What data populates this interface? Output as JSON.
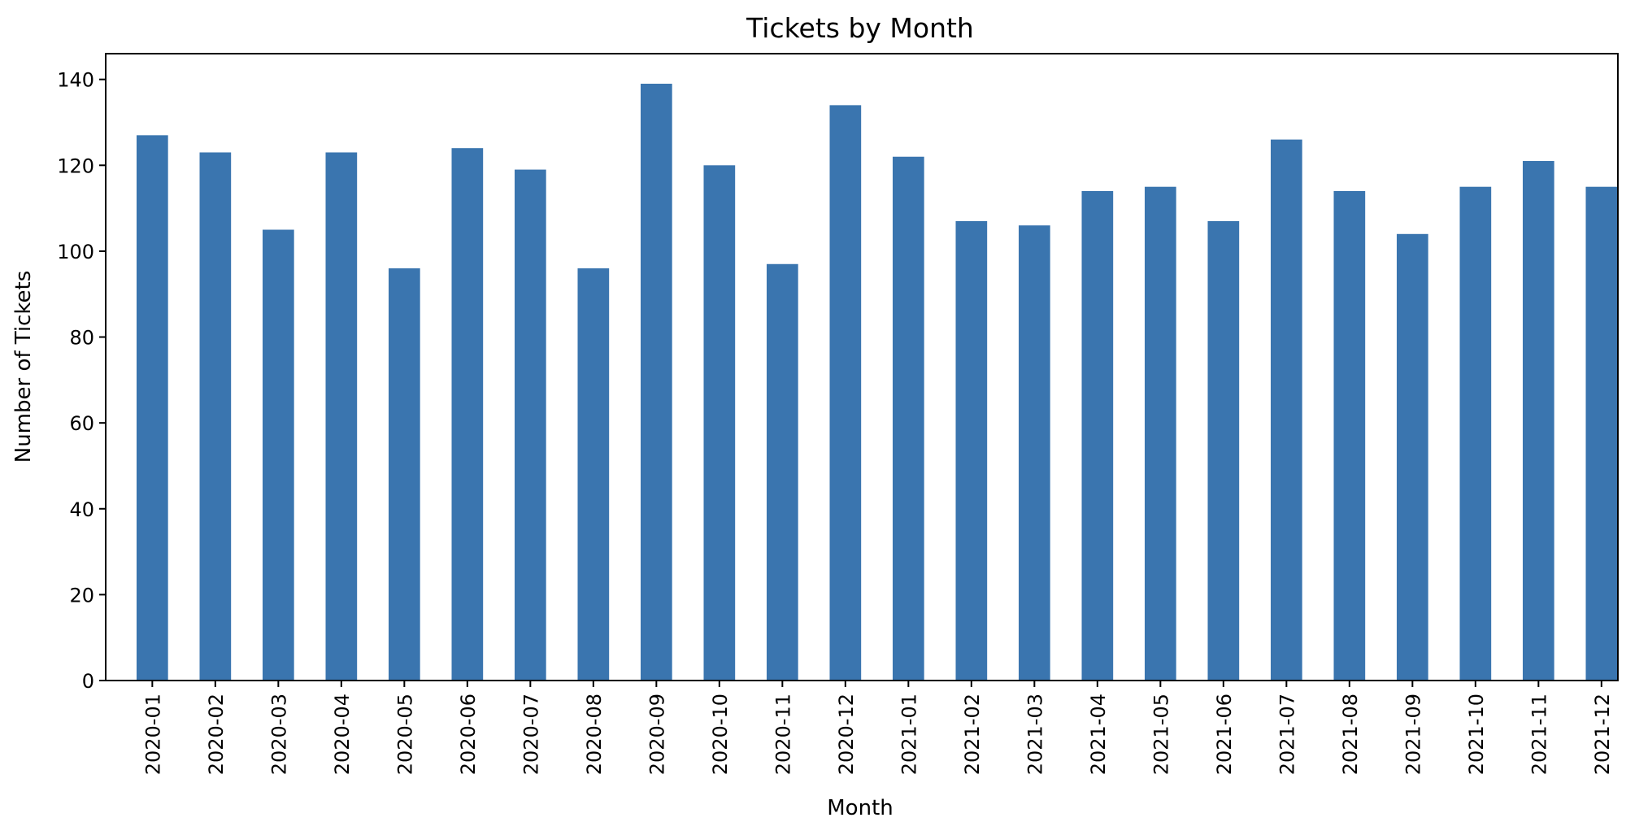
{
  "chart_data": {
    "type": "bar",
    "title": "Tickets by Month",
    "xlabel": "Month",
    "ylabel": "Number of Tickets",
    "categories": [
      "2020-01",
      "2020-02",
      "2020-03",
      "2020-04",
      "2020-05",
      "2020-06",
      "2020-07",
      "2020-08",
      "2020-09",
      "2020-10",
      "2020-11",
      "2020-12",
      "2021-01",
      "2021-02",
      "2021-03",
      "2021-04",
      "2021-05",
      "2021-06",
      "2021-07",
      "2021-08",
      "2021-09",
      "2021-10",
      "2021-11",
      "2021-12"
    ],
    "values": [
      127,
      123,
      105,
      123,
      96,
      124,
      119,
      96,
      139,
      120,
      97,
      134,
      122,
      107,
      106,
      114,
      115,
      107,
      126,
      114,
      104,
      115,
      121,
      115
    ],
    "ylim": [
      0,
      146
    ],
    "yticks": [
      0,
      20,
      40,
      60,
      80,
      100,
      120,
      140
    ],
    "ytick_labels": [
      "0",
      "20",
      "40",
      "60",
      "80",
      "100",
      "120",
      "140"
    ],
    "grid": false,
    "legend": "none",
    "colors": {
      "bar": "#3a75af",
      "axis": "#000000",
      "background": "#ffffff"
    }
  }
}
